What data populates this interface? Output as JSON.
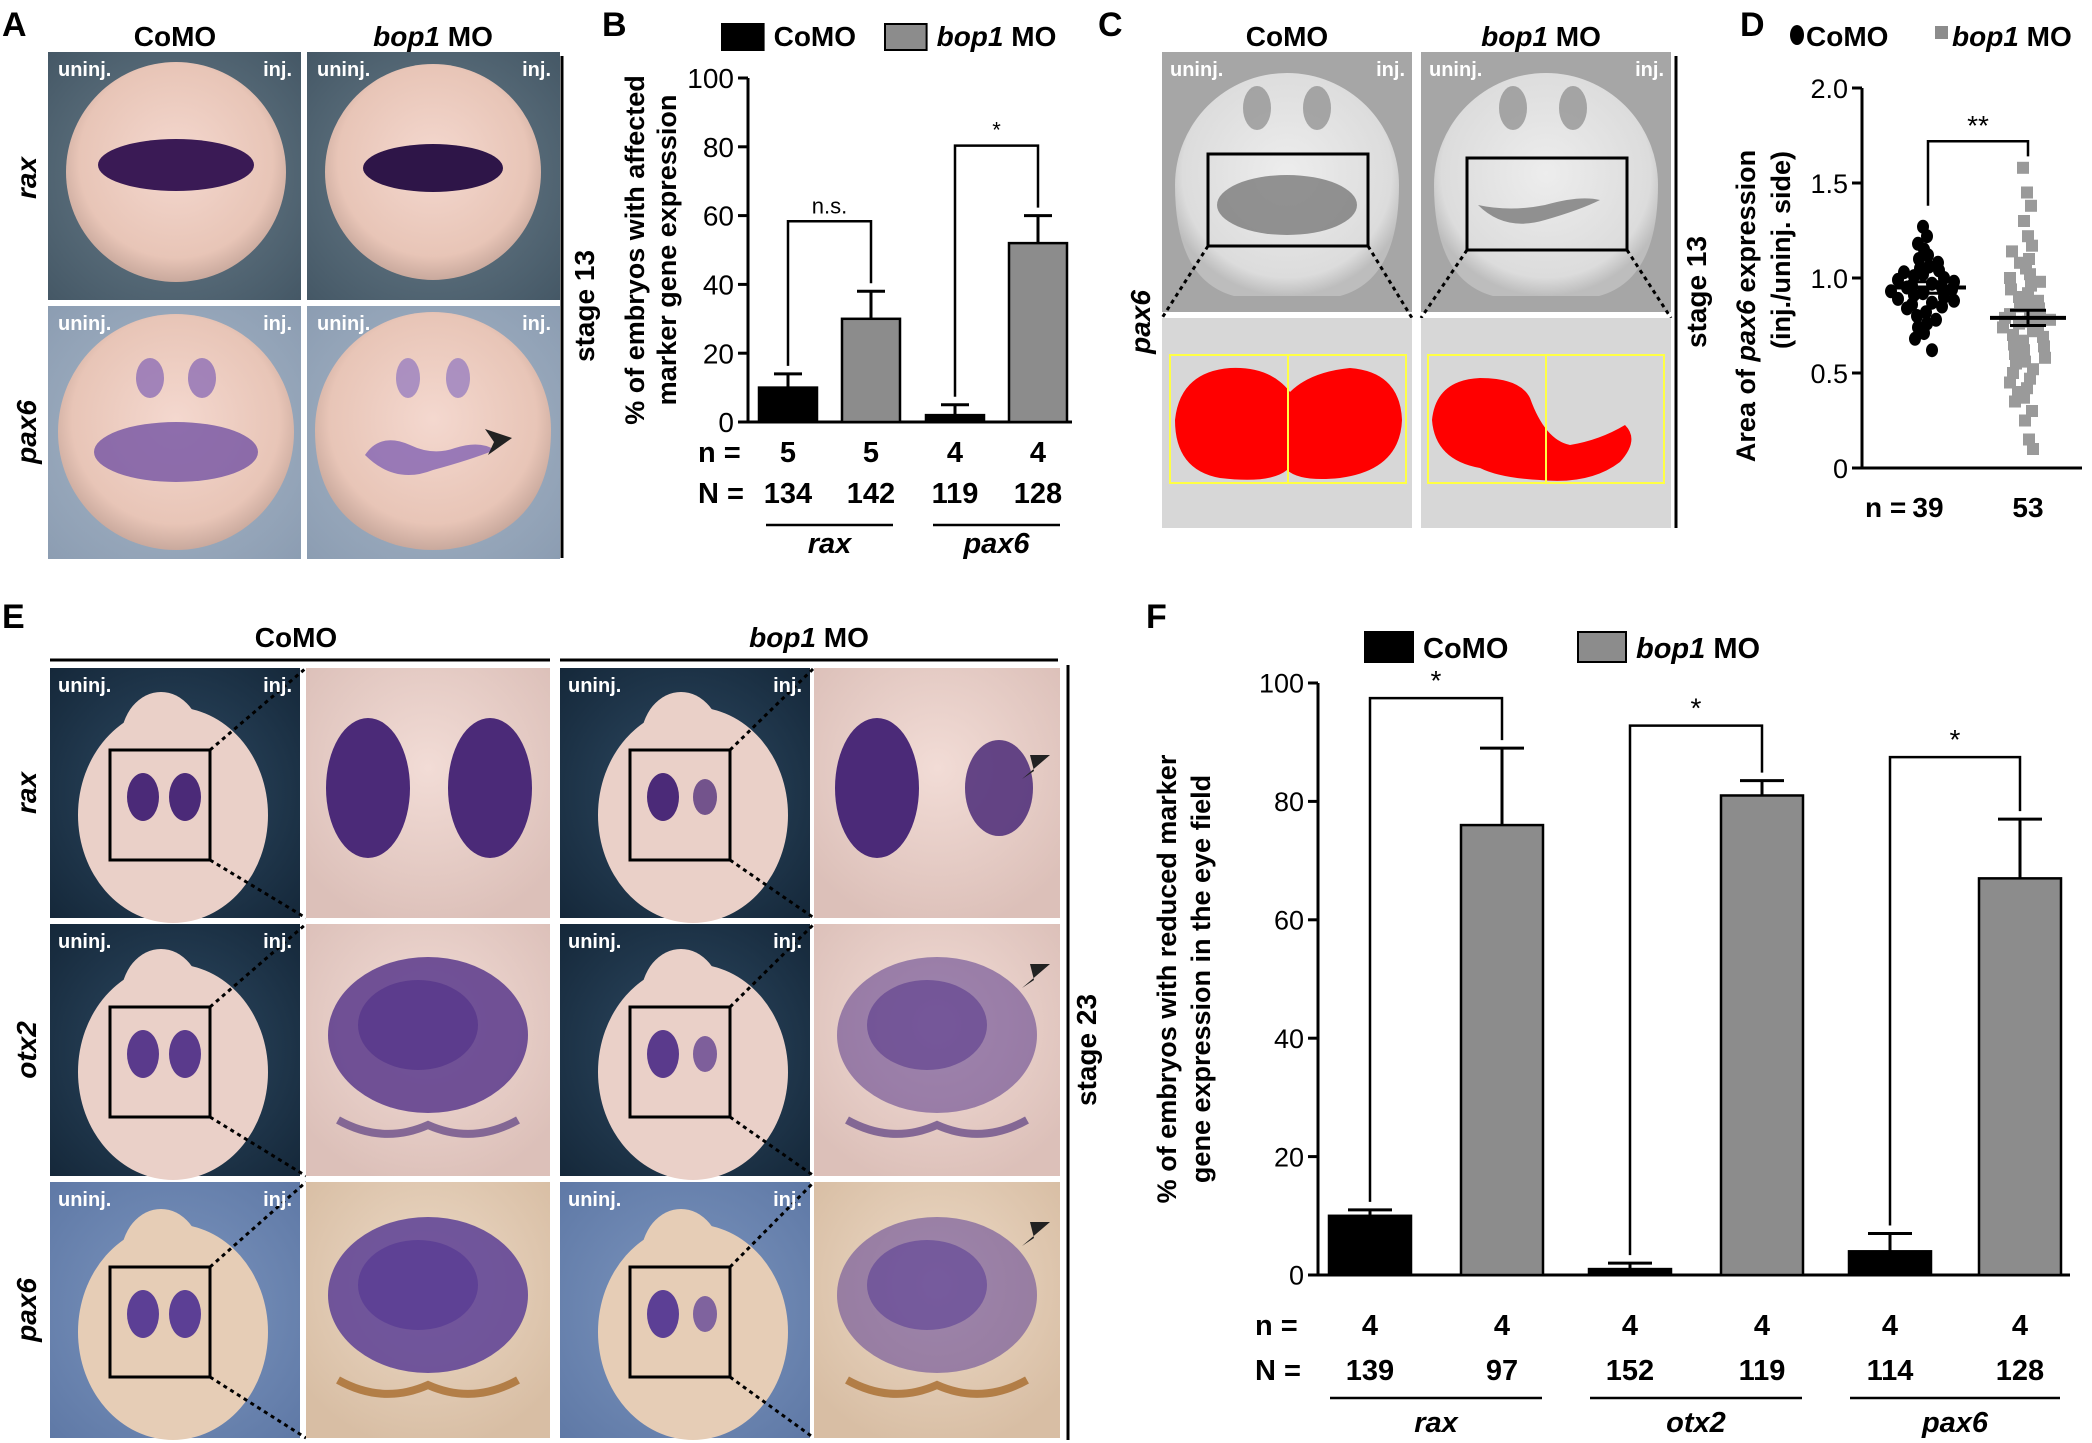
{
  "panels": {
    "A": {
      "letter": "A",
      "col_como": "CoMO",
      "col_bop_gene": "bop1",
      "col_bop_suffix": " MO",
      "row1_gene": "rax",
      "row2_gene": "pax6",
      "uninj": "uninj.",
      "inj": "inj.",
      "stage": "stage 13"
    },
    "B": {
      "letter": "B",
      "sig_left": "n.s.",
      "sig_right": "*"
    },
    "C": {
      "letter": "C",
      "col_como": "CoMO",
      "col_bop_gene": "bop1",
      "col_bop_suffix": " MO",
      "gene": "pax6",
      "uninj": "uninj.",
      "inj": "inj.",
      "stage": "stage 13"
    },
    "D": {
      "letter": "D",
      "legend_como": "CoMO",
      "legend_bop_gene": "bop1",
      "legend_bop_suffix": " MO",
      "ylabel_line1_pre": "Area of ",
      "ylabel_line1_gene": "pax6",
      "ylabel_line1_post": " expression",
      "ylabel_line2": "(inj./uninj. side)",
      "n_label": "n =",
      "n_values": [
        "39",
        "53"
      ],
      "sig": "**"
    },
    "E": {
      "letter": "E",
      "col_como": "CoMO",
      "col_bop_gene": "bop1",
      "col_bop_suffix": " MO",
      "genes": [
        "rax",
        "otx2",
        "pax6"
      ],
      "uninj": "uninj.",
      "inj": "inj.",
      "stage": "stage 23"
    },
    "F": {
      "letter": "F",
      "sig": "*"
    }
  },
  "chart_data": [
    {
      "id": "B",
      "type": "bar",
      "ylabel_lines": [
        "% of embryos with affected",
        "marker gene expression"
      ],
      "legend": [
        {
          "name": "CoMO",
          "italic_part": "",
          "color": "#000000"
        },
        {
          "name": " MO",
          "italic_part": "bop1",
          "color": "#8c8c8c"
        }
      ],
      "ylim": [
        0,
        100
      ],
      "yticks": [
        0,
        20,
        40,
        60,
        80,
        100
      ],
      "groups": [
        "rax",
        "pax6"
      ],
      "series": [
        {
          "name": "CoMO",
          "values": [
            10,
            2
          ],
          "errors": [
            4,
            3
          ]
        },
        {
          "name": "bop1 MO",
          "values": [
            30,
            52
          ],
          "errors": [
            8,
            8
          ]
        }
      ],
      "n_label": "n =",
      "N_label": "N =",
      "n": [
        "5",
        "5",
        "4",
        "4"
      ],
      "N": [
        "134",
        "142",
        "119",
        "128"
      ]
    },
    {
      "id": "D",
      "type": "scatter",
      "ylim": [
        0,
        2.0
      ],
      "yticks": [
        "0",
        "0.5",
        "1.0",
        "1.5",
        "2.0"
      ],
      "groups": [
        {
          "name": "CoMO",
          "mean": 0.95,
          "sem": 0.03,
          "values": [
            1.27,
            1.22,
            1.18,
            1.15,
            1.12,
            1.1,
            1.08,
            1.06,
            1.05,
            1.04,
            1.03,
            1.02,
            1.01,
            1.0,
            0.99,
            0.98,
            0.97,
            0.96,
            0.95,
            0.95,
            0.94,
            0.93,
            0.92,
            0.91,
            0.9,
            0.89,
            0.88,
            0.87,
            0.86,
            0.85,
            0.84,
            0.82,
            0.8,
            0.78,
            0.76,
            0.74,
            0.71,
            0.68,
            0.62
          ]
        },
        {
          "name": "bop1 MO",
          "mean": 0.79,
          "sem": 0.04,
          "values": [
            1.58,
            1.45,
            1.38,
            1.3,
            1.22,
            1.17,
            1.14,
            1.1,
            1.08,
            1.05,
            1.02,
            1.0,
            0.98,
            0.96,
            0.94,
            0.92,
            0.9,
            0.88,
            0.86,
            0.85,
            0.84,
            0.82,
            0.81,
            0.8,
            0.79,
            0.78,
            0.77,
            0.76,
            0.75,
            0.74,
            0.72,
            0.7,
            0.69,
            0.67,
            0.65,
            0.64,
            0.62,
            0.6,
            0.58,
            0.56,
            0.55,
            0.52,
            0.5,
            0.47,
            0.45,
            0.42,
            0.4,
            0.37,
            0.35,
            0.3,
            0.25,
            0.15,
            0.1
          ]
        }
      ]
    },
    {
      "id": "F",
      "type": "bar",
      "ylabel_lines": [
        "% of embryos with reduced marker",
        "gene expression in the eye field"
      ],
      "legend": [
        {
          "name": "CoMO",
          "italic_part": "",
          "color": "#000000"
        },
        {
          "name": " MO",
          "italic_part": "bop1",
          "color": "#8c8c8c"
        }
      ],
      "ylim": [
        0,
        100
      ],
      "yticks": [
        0,
        20,
        40,
        60,
        80,
        100
      ],
      "groups": [
        "rax",
        "otx2",
        "pax6"
      ],
      "series": [
        {
          "name": "CoMO",
          "values": [
            10,
            1,
            4
          ],
          "errors": [
            1,
            1,
            3
          ]
        },
        {
          "name": "bop1 MO",
          "values": [
            76,
            81,
            67
          ],
          "errors": [
            13,
            2.5,
            10
          ]
        }
      ],
      "n_label": "n =",
      "N_label": "N =",
      "n": [
        "4",
        "4",
        "4",
        "4",
        "4",
        "4"
      ],
      "N": [
        "139",
        "97",
        "152",
        "119",
        "114",
        "128"
      ]
    }
  ]
}
